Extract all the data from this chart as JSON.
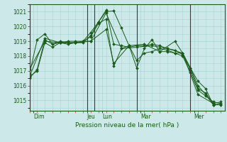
{
  "xlabel": "Pression niveau de la mer( hPa )",
  "bg_color": "#cce8e8",
  "grid_color": "#aad4d4",
  "line_color": "#1a5c1a",
  "ylim": [
    1014.3,
    1021.5
  ],
  "yticks": [
    1015,
    1016,
    1017,
    1018,
    1019,
    1020,
    1021
  ],
  "xlim": [
    0,
    25.5
  ],
  "day_sep_x": [
    0,
    7.5,
    8.5,
    14,
    21
  ],
  "day_tick_x": [
    0.5,
    7.5,
    9.5,
    14.5,
    21.5
  ],
  "day_labels": [
    "Dim",
    "Jeu",
    "Lun",
    "Mar",
    "Mer"
  ],
  "lines": [
    {
      "x": [
        0,
        1,
        2,
        3,
        4,
        5,
        6,
        7,
        8,
        9,
        10,
        11,
        12,
        13,
        14,
        15,
        16,
        17,
        18,
        19,
        20,
        21,
        22,
        23,
        24,
        25
      ],
      "y": [
        1016.5,
        1017.1,
        1019.1,
        1018.8,
        1018.9,
        1019.0,
        1019.0,
        1019.0,
        1019.6,
        1020.3,
        1021.0,
        1021.05,
        1019.9,
        1018.7,
        1017.2,
        1018.5,
        1019.1,
        1018.3,
        1018.3,
        1018.2,
        1018.2,
        1017.2,
        1016.3,
        1015.8,
        1014.7,
        1014.7
      ]
    },
    {
      "x": [
        0,
        1,
        2,
        3,
        4,
        5,
        6,
        7,
        8,
        9,
        10,
        11,
        12,
        13,
        14,
        15,
        16,
        17,
        18,
        19,
        20,
        21,
        22,
        23,
        24,
        25
      ],
      "y": [
        1016.8,
        1019.1,
        1019.5,
        1018.8,
        1019.0,
        1018.9,
        1018.9,
        1018.9,
        1019.4,
        1020.3,
        1021.1,
        1018.8,
        1018.7,
        1018.6,
        1018.7,
        1018.7,
        1018.8,
        1018.7,
        1018.5,
        1018.4,
        1018.1,
        1017.1,
        1015.8,
        1015.5,
        1014.8,
        1014.9
      ]
    },
    {
      "x": [
        0,
        2,
        4,
        6,
        8,
        10,
        12,
        14,
        16,
        18,
        20,
        22,
        24
      ],
      "y": [
        1016.6,
        1019.2,
        1018.9,
        1018.9,
        1019.0,
        1020.9,
        1018.5,
        1018.6,
        1018.7,
        1018.5,
        1018.2,
        1015.4,
        1014.8
      ]
    },
    {
      "x": [
        0,
        2,
        4,
        6,
        7,
        8,
        10,
        11,
        13,
        15,
        17,
        19,
        20,
        21,
        22,
        23,
        24,
        25
      ],
      "y": [
        1017.1,
        1019.0,
        1018.9,
        1018.9,
        1019.0,
        1019.0,
        1019.8,
        1017.5,
        1018.7,
        1018.8,
        1018.3,
        1019.0,
        1018.2,
        1017.2,
        1016.0,
        1015.4,
        1014.7,
        1014.8
      ]
    },
    {
      "x": [
        0,
        1,
        2,
        3,
        4,
        5,
        6,
        7,
        8,
        9,
        10,
        11,
        12,
        13,
        14,
        15,
        16,
        17,
        18,
        19,
        20,
        21,
        22,
        23,
        24,
        25
      ],
      "y": [
        1016.6,
        1017.0,
        1018.9,
        1018.6,
        1018.9,
        1018.8,
        1018.9,
        1019.0,
        1019.3,
        1020.2,
        1020.5,
        1017.3,
        1018.5,
        1018.7,
        1017.7,
        1018.2,
        1018.3,
        1018.5,
        1018.4,
        1018.2,
        1018.0,
        1016.9,
        1015.7,
        1015.3,
        1014.9,
        1014.8
      ]
    }
  ]
}
